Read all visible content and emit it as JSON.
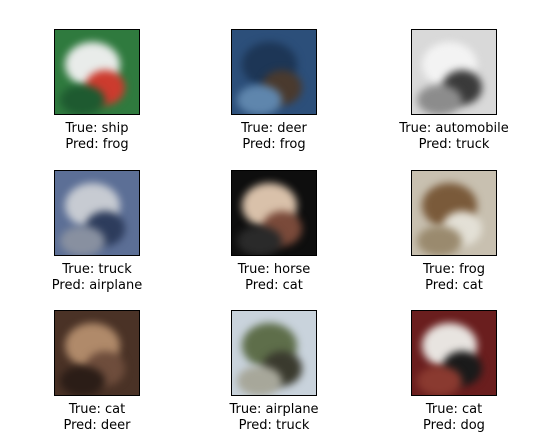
{
  "grid": {
    "items": [
      {
        "true_label": "True: ship",
        "pred_label": "Pred: frog",
        "thumb_colors": [
          "#2f7a3e",
          "#e9ecea",
          "#cc3b2e",
          "#1e5a30"
        ]
      },
      {
        "true_label": "True: deer",
        "pred_label": "Pred: frog",
        "thumb_colors": [
          "#2c4f7a",
          "#1d3656",
          "#4a3a2e",
          "#5f86ad"
        ]
      },
      {
        "true_label": "True: automobile",
        "pred_label": "Pred: truck",
        "thumb_colors": [
          "#d9d9d9",
          "#f3f3f3",
          "#3a3a3a",
          "#8c8c8c"
        ]
      },
      {
        "true_label": "True: truck",
        "pred_label": "Pred: airplane",
        "thumb_colors": [
          "#5c6f96",
          "#c7cbd2",
          "#2d3c5c",
          "#8890a0"
        ]
      },
      {
        "true_label": "True: horse",
        "pred_label": "Pred: cat",
        "thumb_colors": [
          "#0e0e0e",
          "#d9c1aa",
          "#7a4a3a",
          "#2a2a2a"
        ]
      },
      {
        "true_label": "True: frog",
        "pred_label": "Pred: cat",
        "thumb_colors": [
          "#c8c0b0",
          "#7a5a3a",
          "#e3e0d6",
          "#9a8a6e"
        ]
      },
      {
        "true_label": "True: cat",
        "pred_label": "Pred: deer",
        "thumb_colors": [
          "#4a3226",
          "#b08a6a",
          "#6e4d3c",
          "#2b1d17"
        ]
      },
      {
        "true_label": "True: airplane",
        "pred_label": "Pred: truck",
        "thumb_colors": [
          "#c9d3dc",
          "#5e6e4a",
          "#3a3a2e",
          "#a7a79a"
        ]
      },
      {
        "true_label": "True: cat",
        "pred_label": "Pred: dog",
        "thumb_colors": [
          "#6a1e1e",
          "#e8e4e0",
          "#1a1a1a",
          "#8a3a30"
        ]
      }
    ]
  }
}
